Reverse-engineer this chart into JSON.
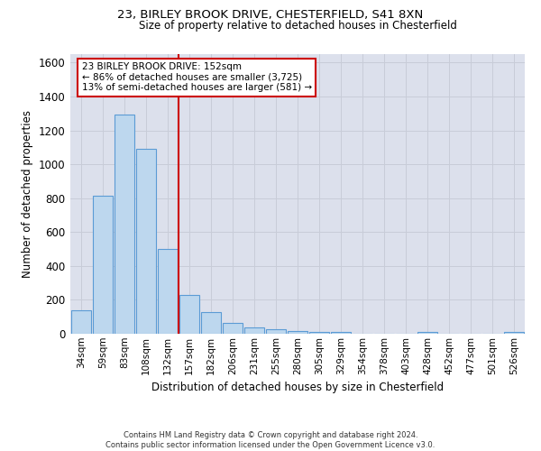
{
  "title1": "23, BIRLEY BROOK DRIVE, CHESTERFIELD, S41 8XN",
  "title2": "Size of property relative to detached houses in Chesterfield",
  "xlabel": "Distribution of detached houses by size in Chesterfield",
  "ylabel": "Number of detached properties",
  "footer1": "Contains HM Land Registry data © Crown copyright and database right 2024.",
  "footer2": "Contains public sector information licensed under the Open Government Licence v3.0.",
  "bar_labels": [
    "34sqm",
    "59sqm",
    "83sqm",
    "108sqm",
    "132sqm",
    "157sqm",
    "182sqm",
    "206sqm",
    "231sqm",
    "255sqm",
    "280sqm",
    "305sqm",
    "329sqm",
    "354sqm",
    "378sqm",
    "403sqm",
    "428sqm",
    "452sqm",
    "477sqm",
    "501sqm",
    "526sqm"
  ],
  "bar_values": [
    140,
    815,
    1295,
    1090,
    500,
    230,
    130,
    65,
    38,
    28,
    15,
    12,
    8,
    2,
    1,
    0,
    12,
    1,
    0,
    0,
    12
  ],
  "bar_color": "#bdd7ee",
  "bar_edge_color": "#5b9bd5",
  "grid_color": "#c8ccd8",
  "bg_color": "#dce0ec",
  "annotation_line1": "23 BIRLEY BROOK DRIVE: 152sqm",
  "annotation_line2": "← 86% of detached houses are smaller (3,725)",
  "annotation_line3": "13% of semi-detached houses are larger (581) →",
  "vline_x": 4.5,
  "vline_color": "#cc0000",
  "annotation_box_color": "#cc0000",
  "ylim": [
    0,
    1650
  ],
  "yticks": [
    0,
    200,
    400,
    600,
    800,
    1000,
    1200,
    1400,
    1600
  ]
}
